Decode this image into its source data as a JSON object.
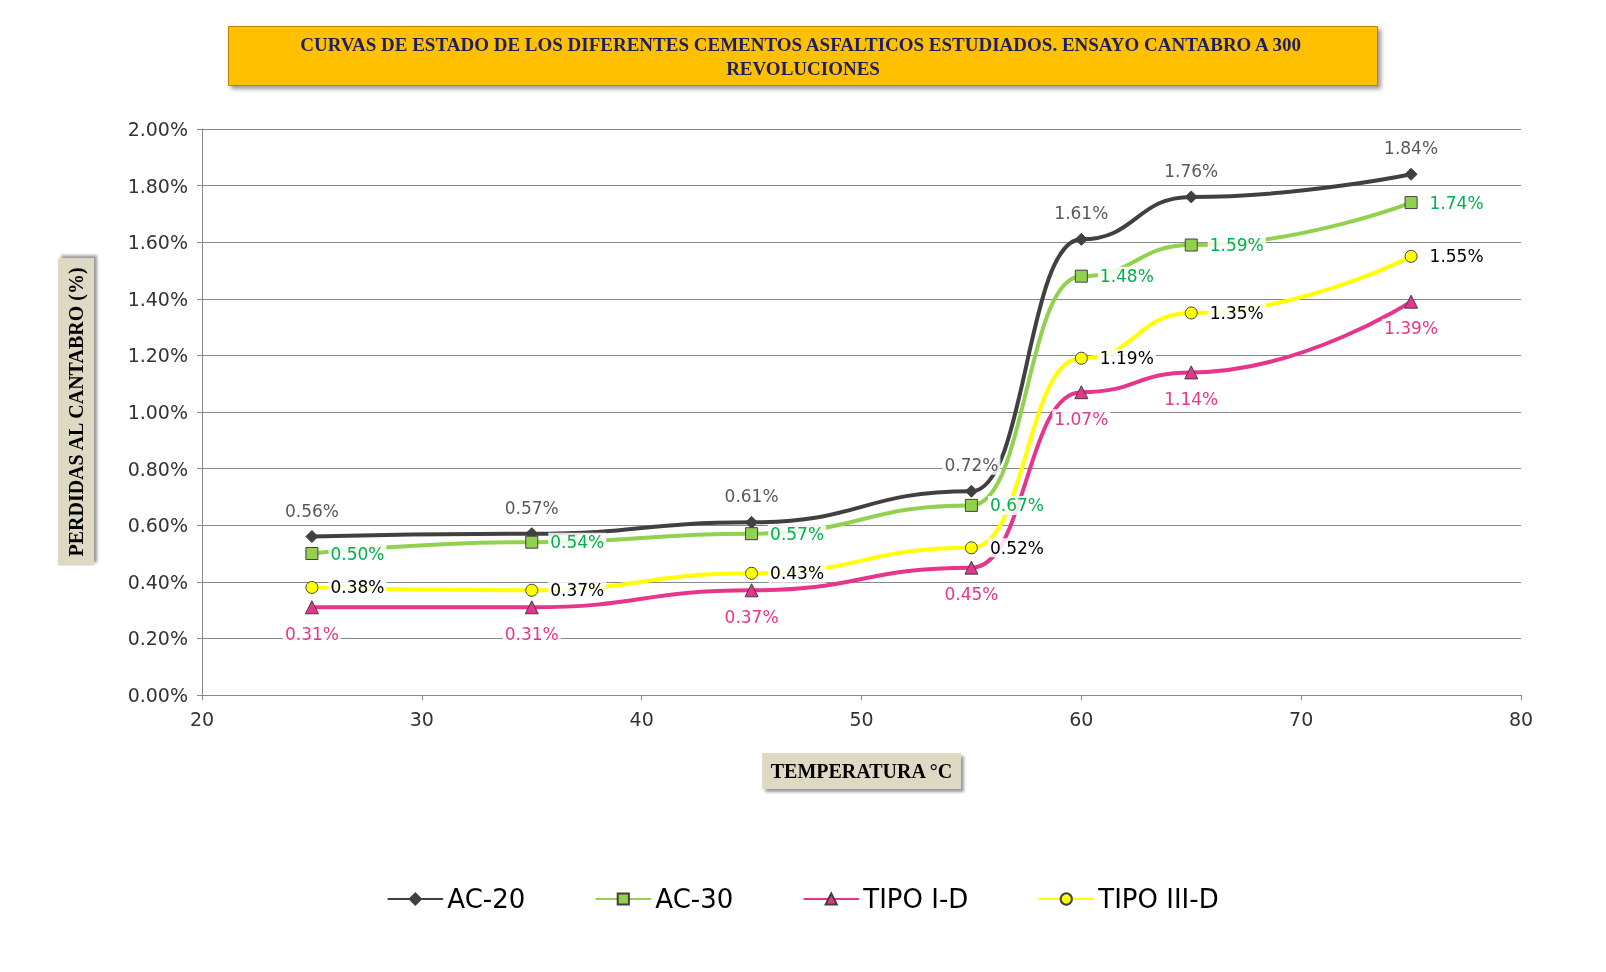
{
  "chart_data": {
    "type": "line",
    "title": "CURVAS DE ESTADO DE LOS DIFERENTES CEMENTOS ASFALTICOS ESTUDIADOS. ENSAYO CANTABRO A 300 REVOLUCIONES",
    "xlabel": "TEMPERATURA °C",
    "ylabel": "PERDIDAS AL CANTABRO (%)",
    "x": [
      25,
      35,
      45,
      55,
      60,
      65,
      75
    ],
    "series": [
      {
        "name": "AC-20",
        "color": "#404040",
        "marker": "diamond",
        "values": [
          0.56,
          0.57,
          0.61,
          0.72,
          1.61,
          1.76,
          1.84
        ],
        "value_labels": [
          "0.56%",
          "0.57%",
          "0.61%",
          "0.72%",
          "1.61%",
          "1.76%",
          "1.84%"
        ]
      },
      {
        "name": "AC-30",
        "color": "#92d050",
        "marker": "square",
        "values": [
          0.5,
          0.54,
          0.57,
          0.67,
          1.48,
          1.59,
          1.74
        ],
        "value_labels": [
          "0.50%",
          "0.54%",
          "0.57%",
          "0.67%",
          "1.48%",
          "1.59%",
          "1.74%"
        ]
      },
      {
        "name": "TIPO I-D",
        "color": "#e6358a",
        "marker": "triangle",
        "values": [
          0.31,
          0.31,
          0.37,
          0.45,
          1.07,
          1.14,
          1.39
        ],
        "value_labels": [
          "0.31%",
          "0.31%",
          "0.37%",
          "0.45%",
          "1.07%",
          "1.14%",
          "1.39%"
        ]
      },
      {
        "name": "TIPO III-D",
        "color": "#ffff00",
        "marker": "circle",
        "values": [
          0.38,
          0.37,
          0.43,
          0.52,
          1.19,
          1.35,
          1.55
        ],
        "value_labels": [
          "0.38%",
          "0.37%",
          "0.43%",
          "0.52%",
          "1.19%",
          "1.35%",
          "1.55%"
        ]
      }
    ],
    "xlim": [
      20,
      80
    ],
    "xticks": [
      20,
      30,
      40,
      50,
      60,
      70,
      80
    ],
    "ylim": [
      0,
      2
    ],
    "yticks": [
      {
        "value": 0,
        "label": "0.00%"
      },
      {
        "value": 0.2,
        "label": "0.20%"
      },
      {
        "value": 0.4,
        "label": "0.40%"
      },
      {
        "value": 0.6,
        "label": "0.60%"
      },
      {
        "value": 0.8,
        "label": "0.80%"
      },
      {
        "value": 1.0,
        "label": "1.00%"
      },
      {
        "value": 1.2,
        "label": "1.20%"
      },
      {
        "value": 1.4,
        "label": "1.40%"
      },
      {
        "value": 1.6,
        "label": "1.60%"
      },
      {
        "value": 1.8,
        "label": "1.80%"
      },
      {
        "value": 2.0,
        "label": "2.00%"
      }
    ],
    "grid": "y",
    "legend": "bottom",
    "line_style": "solid"
  }
}
